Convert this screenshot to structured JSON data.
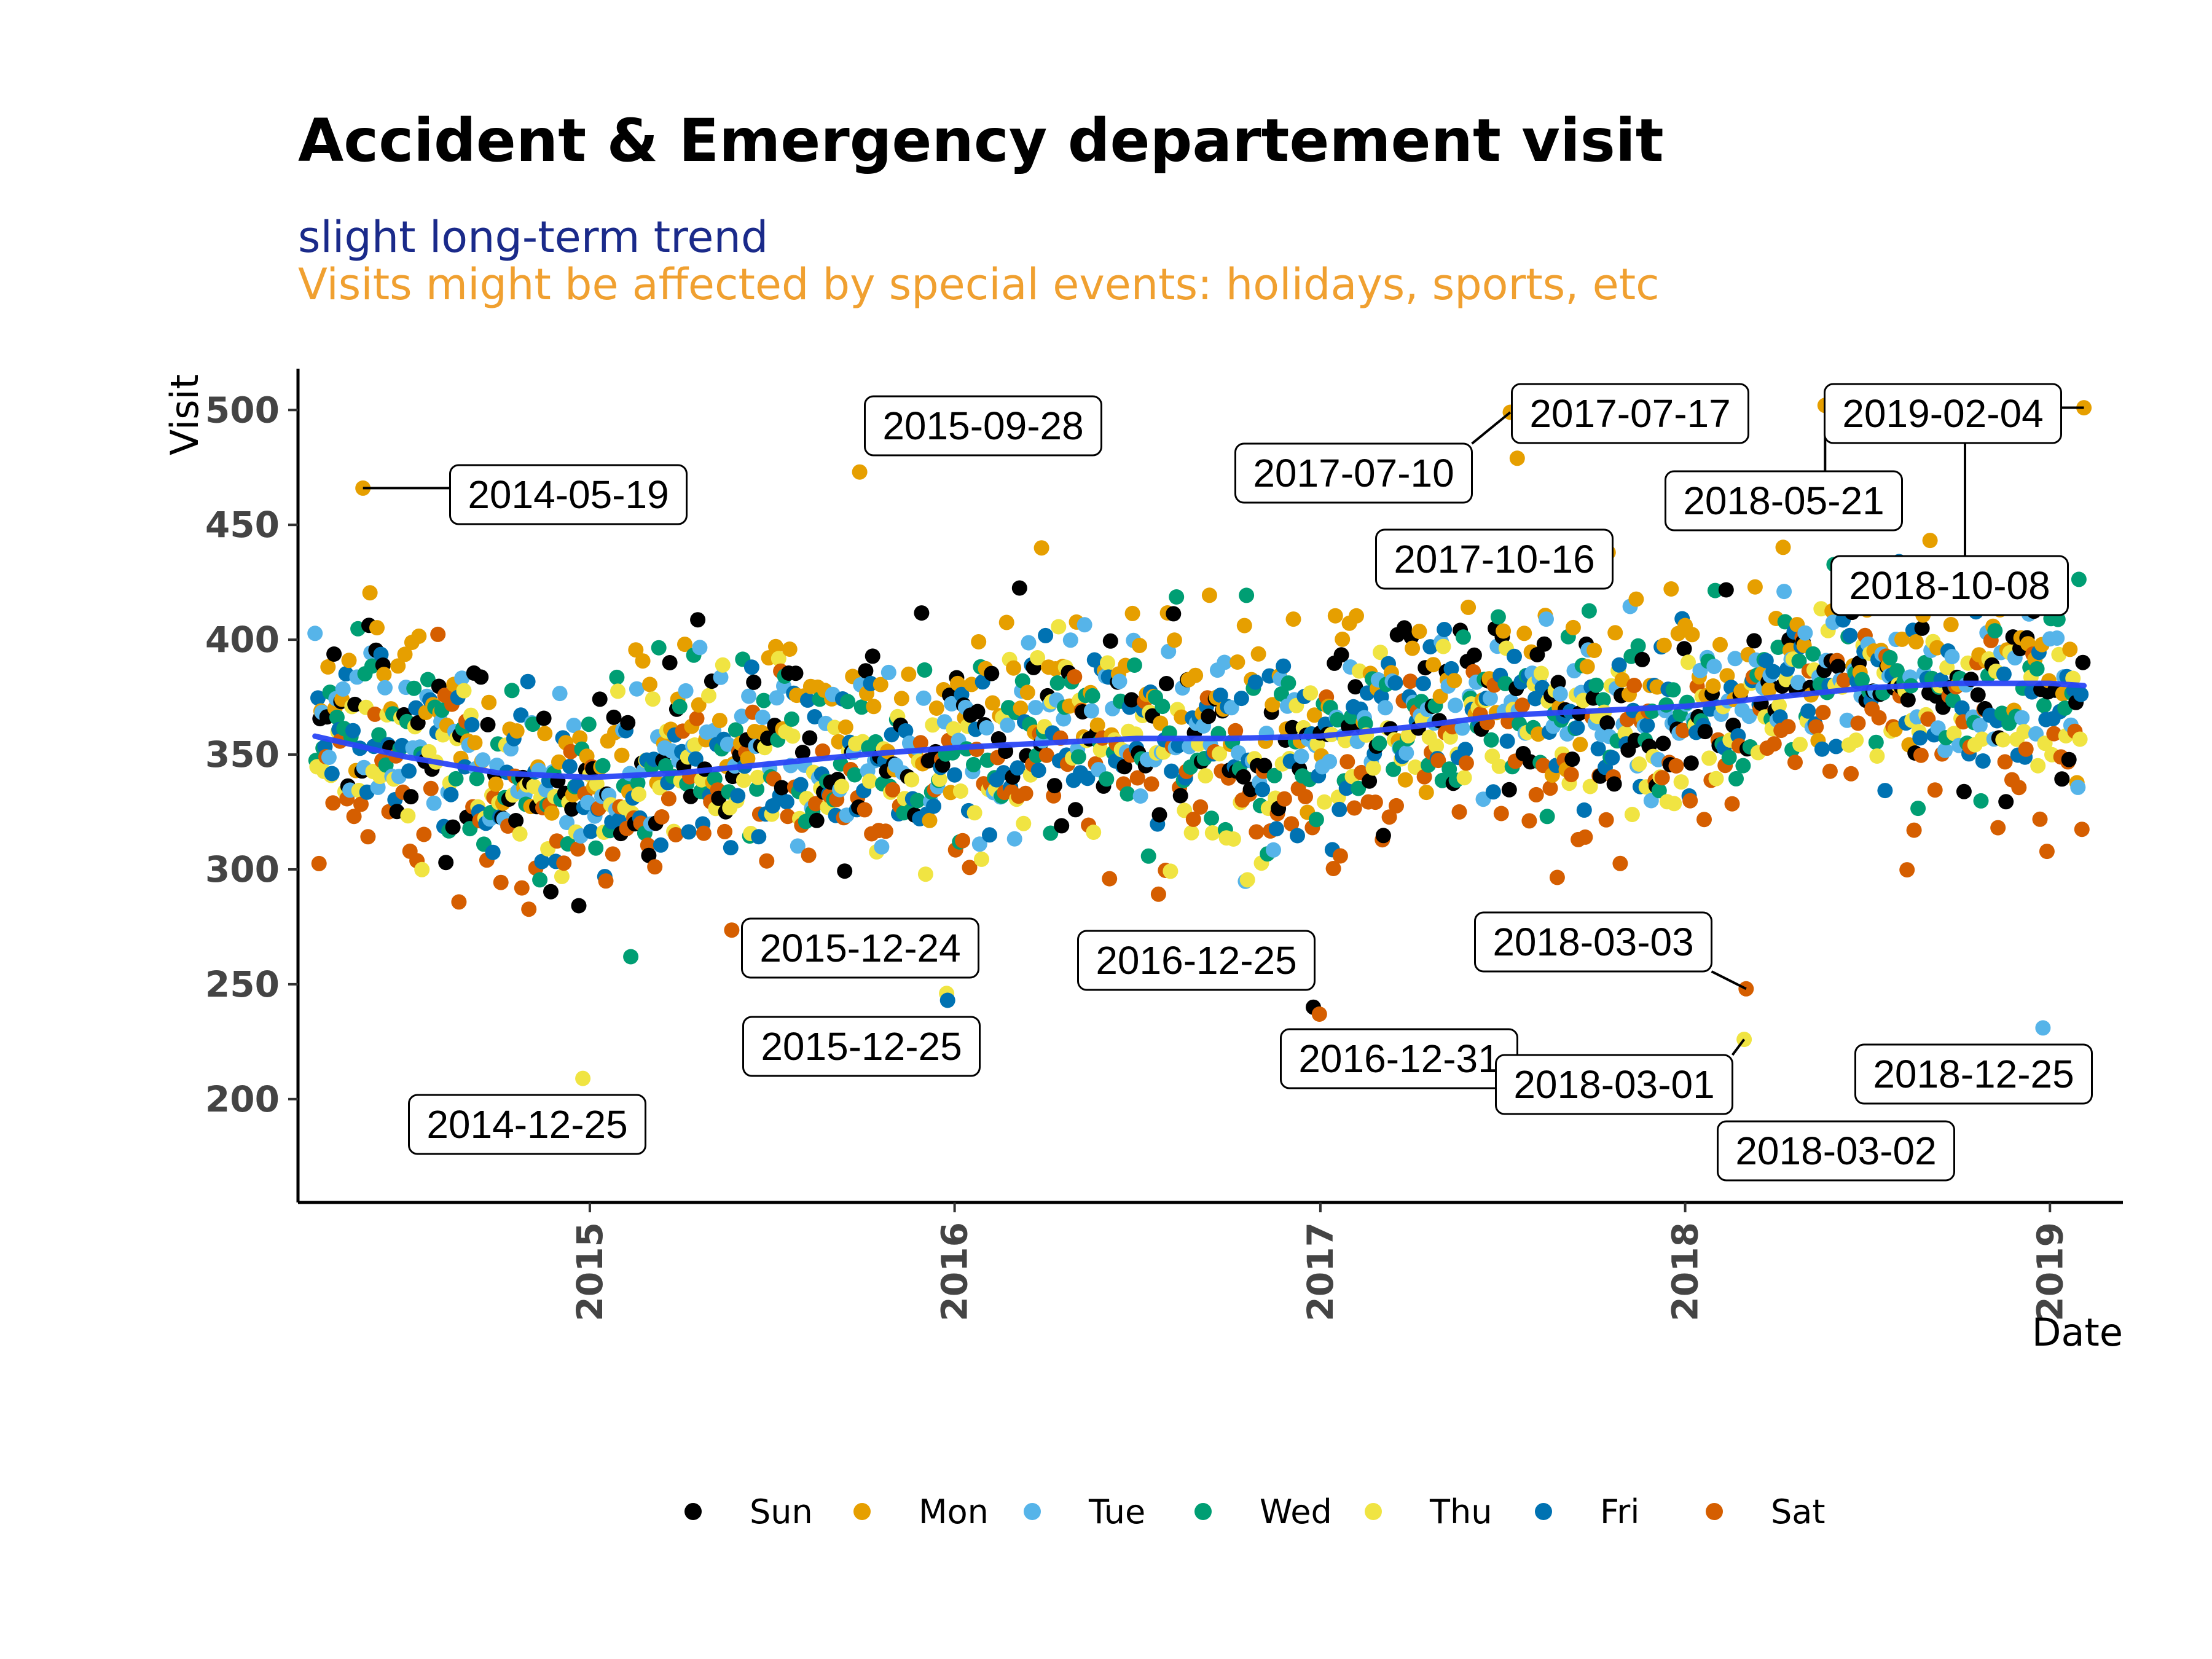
{
  "colors": {
    "Sun": "#000000",
    "Mon": "#E69F00",
    "Tue": "#56B4E9",
    "Wed": "#009E73",
    "Thu": "#F0E442",
    "Fri": "#0072B2",
    "Sat": "#D55E00",
    "trend": "#2A46F5",
    "subtitle1": "#1A2A8A",
    "subtitle2": "#F0A030"
  },
  "chart_data": {
    "type": "scatter",
    "title": "Accident & Emergency departement visit",
    "subtitle": [
      "slight long-term trend",
      "Visits might be affected by special events: holidays, sports, etc"
    ],
    "xlabel": "Date",
    "ylabel": "Visit",
    "x_type": "date",
    "xlim": [
      "2014-03-15",
      "2019-03-15"
    ],
    "ylim": [
      155,
      518
    ],
    "x_ticks": [
      "2015",
      "2016",
      "2017",
      "2018",
      "2019"
    ],
    "x_tick_dates": [
      "2015-01-01",
      "2016-01-01",
      "2017-01-01",
      "2018-01-01",
      "2019-01-01"
    ],
    "y_ticks": [
      200,
      250,
      300,
      350,
      400,
      450,
      500
    ],
    "legend": {
      "position": "bottom",
      "entries": [
        "Sun",
        "Mon",
        "Tue",
        "Wed",
        "Thu",
        "Fri",
        "Sat"
      ]
    },
    "trend": {
      "name": "smooth",
      "x": [
        "2014-04-01",
        "2014-07-01",
        "2014-10-01",
        "2015-01-01",
        "2015-04-01",
        "2015-07-01",
        "2015-10-01",
        "2016-01-01",
        "2016-04-01",
        "2016-07-01",
        "2016-10-01",
        "2017-01-01",
        "2017-04-01",
        "2017-07-01",
        "2017-10-01",
        "2018-01-01",
        "2018-04-01",
        "2018-07-01",
        "2018-10-01",
        "2019-01-01",
        "2019-02-04"
      ],
      "y": [
        358,
        349,
        342,
        340,
        342,
        346,
        350,
        353,
        355,
        357,
        357,
        358,
        362,
        367,
        369,
        371,
        375,
        379,
        381,
        381,
        380
      ]
    },
    "point_params": {
      "start": "2014-04-01",
      "end": "2019-02-04",
      "weekday_offsets": {
        "Sun": 4,
        "Mon": 22,
        "Tue": 6,
        "Wed": 2,
        "Thu": -6,
        "Fri": -2,
        "Sat": -22
      },
      "noise_sd": 21
    },
    "annotations": [
      {
        "label": "2014-05-19",
        "date": "2014-05-19",
        "value": 466,
        "day": "Mon"
      },
      {
        "label": "2014-12-25",
        "date": "2014-12-25",
        "value": 209,
        "day": "Thu"
      },
      {
        "label": "2015-09-28",
        "date": "2015-09-28",
        "value": 473,
        "day": "Mon"
      },
      {
        "label": "2015-12-24",
        "date": "2015-12-24",
        "value": 246,
        "day": "Thu"
      },
      {
        "label": "2015-12-25",
        "date": "2015-12-25",
        "value": 243,
        "day": "Fri"
      },
      {
        "label": "2016-12-25",
        "date": "2016-12-25",
        "value": 240,
        "day": "Sun"
      },
      {
        "label": "2016-12-31",
        "date": "2016-12-31",
        "value": 237,
        "day": "Sat"
      },
      {
        "label": "2017-07-10",
        "date": "2017-07-10",
        "value": 499,
        "day": "Mon"
      },
      {
        "label": "2017-07-17",
        "date": "2017-07-17",
        "value": 479,
        "day": "Mon"
      },
      {
        "label": "2017-10-16",
        "date": "2017-10-16",
        "value": 438,
        "day": "Mon"
      },
      {
        "label": "2018-03-01",
        "date": "2018-03-01",
        "value": 226,
        "day": "Thu"
      },
      {
        "label": "2018-03-02",
        "date": "2018-03-02",
        "value": 174,
        "day": "Fri"
      },
      {
        "label": "2018-03-03",
        "date": "2018-03-03",
        "value": 248,
        "day": "Sat"
      },
      {
        "label": "2018-05-21",
        "date": "2018-05-21",
        "value": 502,
        "day": "Mon"
      },
      {
        "label": "2018-10-08",
        "date": "2018-10-08",
        "value": 489,
        "day": "Mon"
      },
      {
        "label": "2018-12-25",
        "date": "2018-12-25",
        "value": 231,
        "day": "Tue"
      },
      {
        "label": "2019-02-04",
        "date": "2019-02-04",
        "value": 501,
        "day": "Mon"
      }
    ]
  }
}
